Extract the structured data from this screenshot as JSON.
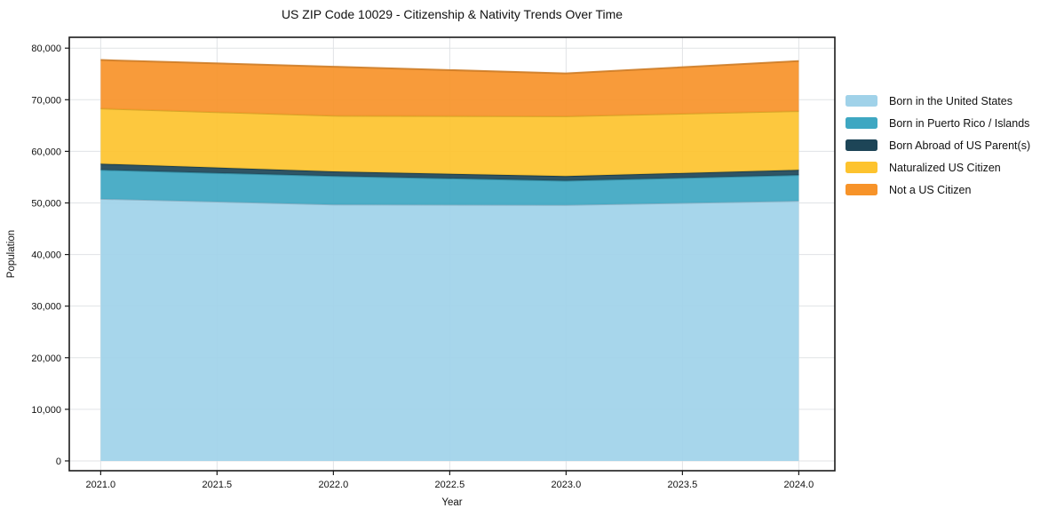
{
  "chart": {
    "title": "US ZIP Code 10029 - Citizenship & Nativity Trends Over Time",
    "xlabel": "Year",
    "ylabel": "Population"
  },
  "chart_data": {
    "type": "area",
    "stacked": true,
    "title": "US ZIP Code 10029 - Citizenship & Nativity Trends Over Time",
    "xlabel": "Year",
    "ylabel": "Population",
    "x": [
      2021,
      2022,
      2023,
      2024
    ],
    "series": [
      {
        "name": "Born in the United States",
        "color": "#A0D2E9",
        "values": [
          50800,
          49700,
          49600,
          50400
        ]
      },
      {
        "name": "Born in Puerto Rico / Islands",
        "color": "#3EA7C2",
        "values": [
          5600,
          5500,
          4700,
          5000
        ]
      },
      {
        "name": "Born Abroad of US Parent(s)",
        "color": "#1D4557",
        "values": [
          1200,
          900,
          900,
          1000
        ]
      },
      {
        "name": "Naturalized US Citizen",
        "color": "#FDC32E",
        "values": [
          10700,
          10800,
          11600,
          11400
        ]
      },
      {
        "name": "Not a US Citizen",
        "color": "#F79329",
        "values": [
          9400,
          9500,
          8300,
          9700
        ]
      }
    ],
    "cumulative_totals": [
      77700,
      76400,
      75100,
      77500
    ],
    "xlim": [
      2020.865,
      2024.155
    ],
    "ylim": [
      -1900,
      82100
    ],
    "xticks": {
      "values": [
        2021.0,
        2021.5,
        2022.0,
        2022.5,
        2023.0,
        2023.5,
        2024.0
      ],
      "labels": [
        "2021.0",
        "2021.5",
        "2022.0",
        "2022.5",
        "2023.0",
        "2023.5",
        "2024.0"
      ]
    },
    "yticks": {
      "values": [
        0,
        10000,
        20000,
        30000,
        40000,
        50000,
        60000,
        70000,
        80000
      ],
      "labels": [
        "0",
        "10,000",
        "20,000",
        "30,000",
        "40,000",
        "50,000",
        "60,000",
        "70,000",
        "80,000"
      ]
    },
    "grid": true,
    "legend_position": "right-outside",
    "colors": {
      "grid": "#e0e3e6",
      "spine": "#1a1a1a",
      "background": "#ffffff"
    }
  }
}
